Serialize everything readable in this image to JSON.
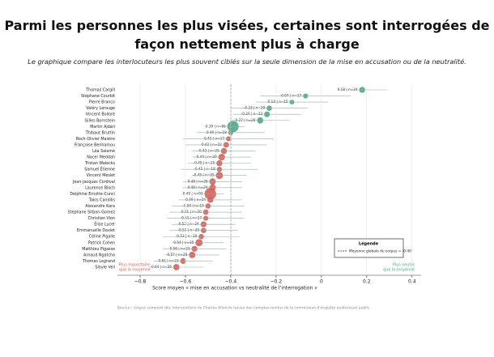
{
  "chart_data": {
    "type": "dotplot",
    "title": "Parmi les personnes les plus visées, certaines sont interrogées de façon nettement plus à charge",
    "subtitle": "Le graphique compare les interlocuteurs les plus souvent ciblés sur la seule dimension de la mise en accusation ou de la neutralité.",
    "x_label": "Score moyen « mise en accusation vs neutralité de l’interrogation »",
    "categories": [
      "Thomas Cargill",
      "Stéphane Courbit",
      "Pierre Branco",
      "Valéry Lerouge",
      "Vincent Bolloré",
      "Gilles Bornstein",
      "Martin Ajdari",
      "Thibaut Bruttin",
      "Roch-Olivier Maistre",
      "Françoise Benhamou",
      "Léa Salamé",
      "Nacer Meddah",
      "Tristan Walecks",
      "Samuel Étienne",
      "Vincent Meslet",
      "Jean-Jacques Cordival",
      "Laurence Bloch",
      "Delphine Ernotte-Cunci",
      "Takis Candilis",
      "Alexandre Kara",
      "Stéphane Sitbon-Gomez",
      "Christian Vion",
      "Élise Lucet",
      "Emmanuelle Daviet",
      "Céline Pigalle",
      "Patrick Cohen",
      "Matthieu Pigasse",
      "Arnaud Ngatcha",
      "Thomas Legrand",
      "Sibyle Veil"
    ],
    "values": [
      0.18,
      -0.07,
      -0.13,
      -0.23,
      -0.24,
      -0.27,
      -0.39,
      -0.4,
      -0.41,
      -0.42,
      -0.43,
      -0.44,
      -0.45,
      -0.45,
      -0.45,
      -0.48,
      -0.48,
      -0.49,
      -0.49,
      -0.5,
      -0.51,
      -0.51,
      -0.52,
      -0.52,
      -0.53,
      -0.54,
      -0.56,
      -0.57,
      -0.61,
      -0.64
    ],
    "sizes": [
      24,
      17,
      15,
      19,
      22,
      26,
      86,
      18,
      17,
      22,
      25,
      30,
      25,
      18,
      35,
      28,
      29,
      91,
      24,
      19,
      20,
      17,
      24,
      20,
      19,
      35,
      23,
      28,
      23,
      26
    ],
    "errors": [
      0.11,
      0.2,
      0.16,
      0.17,
      0.15,
      0.13,
      0.05,
      0.15,
      0.2,
      0.18,
      0.14,
      0.13,
      0.14,
      0.17,
      0.12,
      0.13,
      0.13,
      0.06,
      0.14,
      0.16,
      0.16,
      0.17,
      0.14,
      0.15,
      0.17,
      0.11,
      0.14,
      0.12,
      0.13,
      0.12
    ],
    "value_labels": [
      "0.18 | n=24",
      "-0.07 | n=17",
      "-0.13 | n=15",
      "-0.23 | n=19",
      "-0.24 | n=22",
      "-0.27 | n=26",
      "-0.39 | n=86",
      "-0.40 | n=18",
      "-0.41 | n=17",
      "-0.42 | n=22",
      "-0.43 | n=25",
      "-0.44 | n=30",
      "-0.45 | n=25",
      "-0.45 | n=18",
      "-0.45 | n=35",
      "-0.48 | n=28",
      "-0.48 | n=29",
      "-0.49 | n=91",
      "-0.49 | n=24",
      "-0.50 | n=19",
      "-0.51 | n=20",
      "-0.51 | n=17",
      "-0.52 | n=24",
      "-0.52 | n=20",
      "-0.53 | n=19",
      "-0.54 | n=35",
      "-0.56 | n=23",
      "-0.57 | n=28",
      "-0.61 | n=23",
      "-0.64 | n=26"
    ],
    "above_color": "#4aa88a",
    "below_color": "#d0635c",
    "reference": -0.4,
    "xlim": [
      -0.9,
      0.44
    ],
    "xticks": [
      {
        "value": -0.8,
        "label": "−0.8"
      },
      {
        "value": -0.6,
        "label": "−0.6"
      },
      {
        "value": -0.4,
        "label": "−0.4"
      },
      {
        "value": -0.2,
        "label": "−0.2"
      },
      0.0,
      0.2,
      0.4
    ],
    "grid": true,
    "legend_title": "Légende",
    "legend_entry": "Moyenne globale du corpus = -0.40",
    "left_note": [
      "Plus inquisitoire",
      "que la moyenne"
    ],
    "right_note": [
      "Plus neutre",
      "que la moyenne"
    ],
    "source": "Source : corpus composé des interventions de Charles Alloncle issues des comptes-rendus de la commission d'enquête audiovisuel public."
  }
}
